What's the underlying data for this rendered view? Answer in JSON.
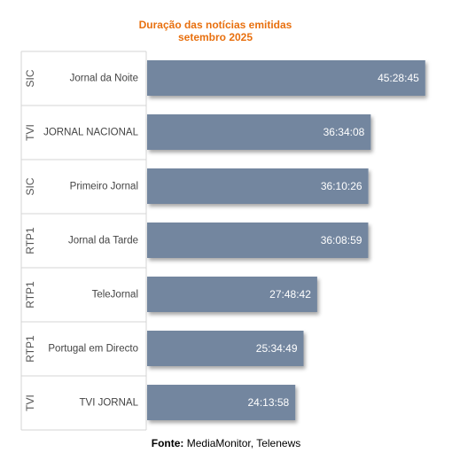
{
  "chart_data": {
    "type": "bar",
    "orientation": "horizontal",
    "title": "Duração das notícias emitidas",
    "subtitle": "setembro 2025",
    "groups": [
      "SIC",
      "TVI",
      "SIC",
      "RTP1",
      "RTP1",
      "RTP1",
      "TVI"
    ],
    "categories": [
      "Jornal da Noite",
      "JORNAL NACIONAL",
      "Primeiro Jornal",
      "Jornal da Tarde",
      "TeleJornal",
      "Portugal em Directo",
      "TVI JORNAL"
    ],
    "values": [
      "45:28:45",
      "36:34:08",
      "36:10:26",
      "36:08:59",
      "27:48:42",
      "25:34:49",
      "24:13:58"
    ],
    "xlim": [
      0,
      47
    ],
    "value_unit": "hours (hh:mm:ss)",
    "grid": false,
    "bar_color": "#73869f",
    "label_color": "#ffffff",
    "title_color": "#e8700f"
  },
  "source": {
    "label": "Fonte:",
    "text": "MediaMonitor, Telenews"
  }
}
